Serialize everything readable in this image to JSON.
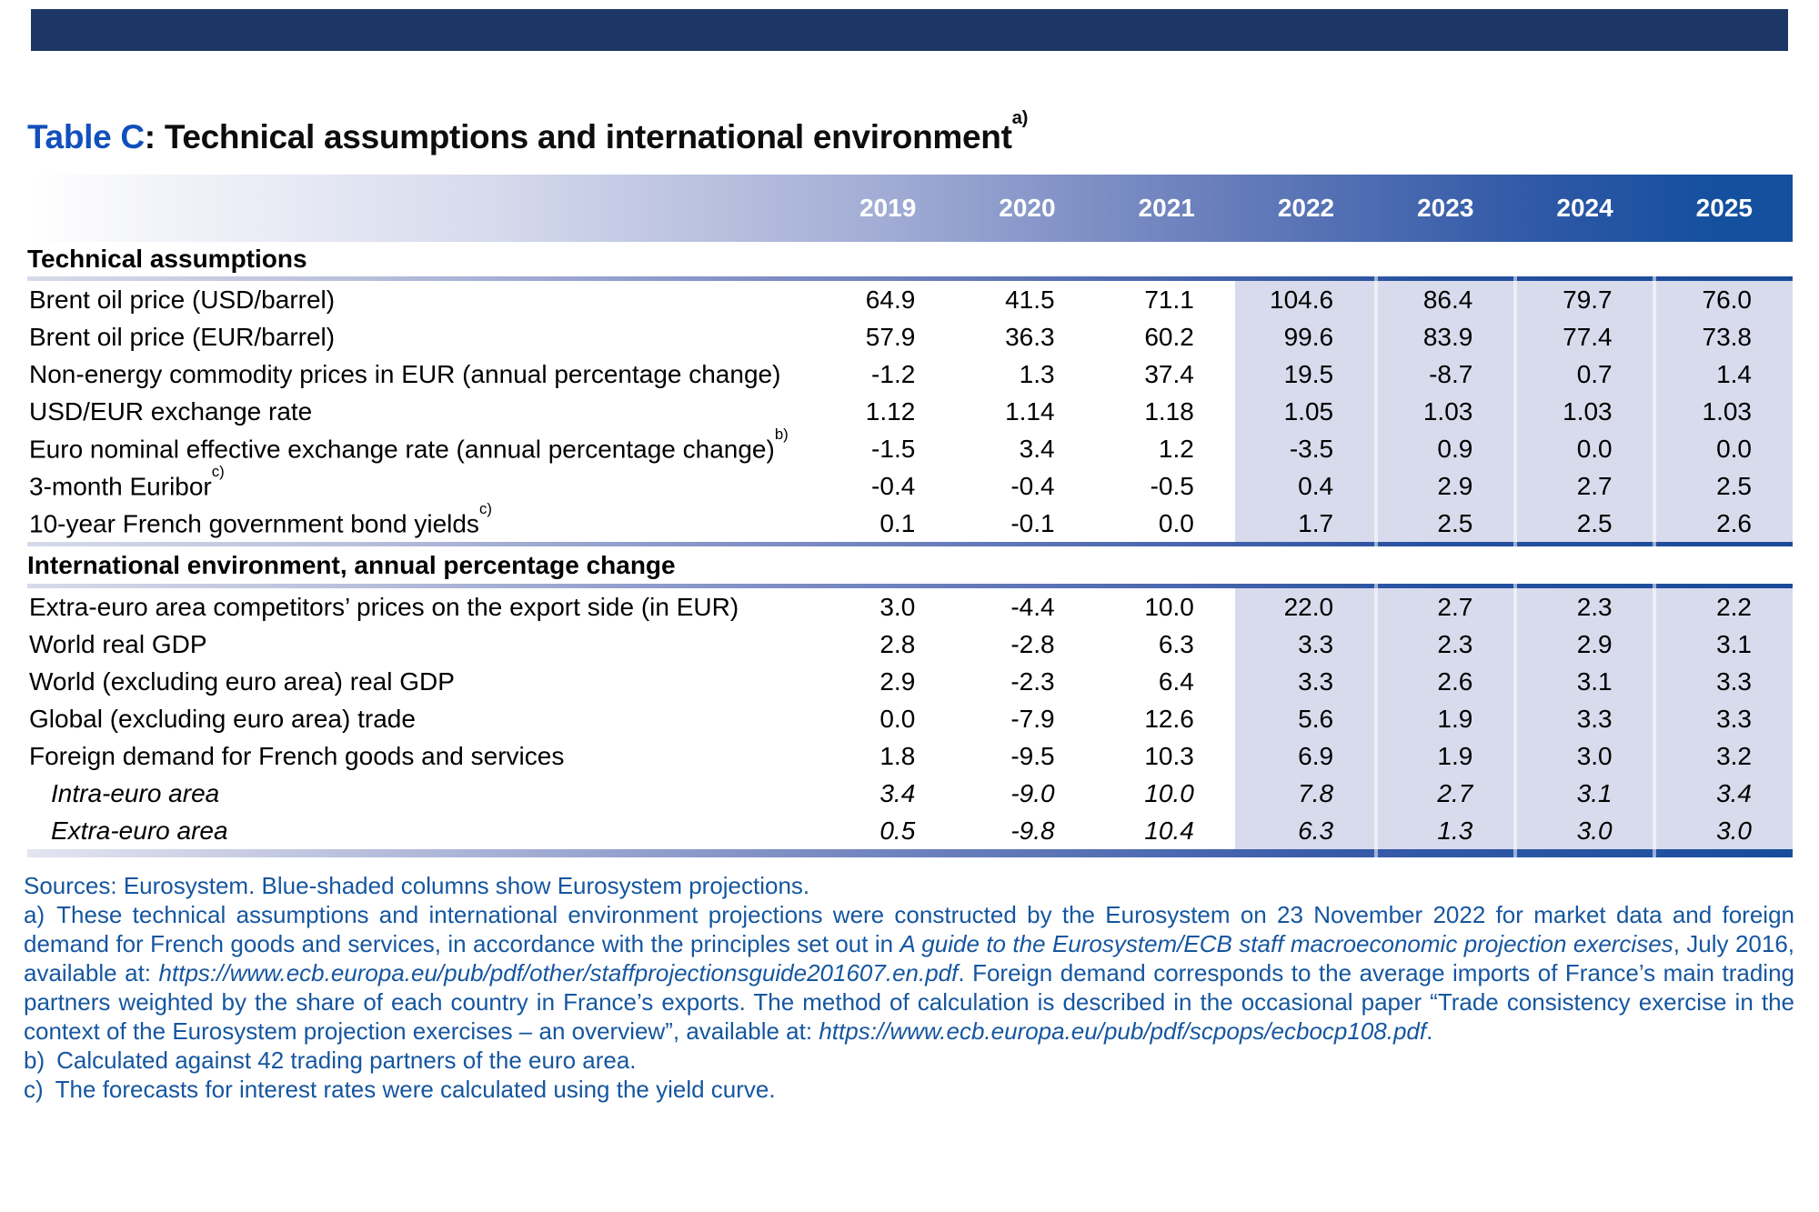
{
  "title": {
    "label": "Table C",
    "separator": ": ",
    "text": "Technical assumptions and international environment",
    "sup": "a)"
  },
  "table": {
    "years": [
      "2019",
      "2020",
      "2021",
      "2022",
      "2023",
      "2024",
      "2025"
    ],
    "projection_years": [
      "2022",
      "2023",
      "2024",
      "2025"
    ],
    "sections": [
      {
        "header": "Technical assumptions",
        "rows": [
          {
            "label": "Brent oil price (USD/barrel)",
            "sup": "",
            "italic": false,
            "values": [
              "64.9",
              "41.5",
              "71.1",
              "104.6",
              "86.4",
              "79.7",
              "76.0"
            ]
          },
          {
            "label": "Brent oil price (EUR/barrel)",
            "sup": "",
            "italic": false,
            "values": [
              "57.9",
              "36.3",
              "60.2",
              "99.6",
              "83.9",
              "77.4",
              "73.8"
            ]
          },
          {
            "label": "Non-energy commodity prices in EUR (annual percentage change)",
            "sup": "",
            "italic": false,
            "values": [
              "-1.2",
              "1.3",
              "37.4",
              "19.5",
              "-8.7",
              "0.7",
              "1.4"
            ]
          },
          {
            "label": "USD/EUR exchange rate",
            "sup": "",
            "italic": false,
            "values": [
              "1.12",
              "1.14",
              "1.18",
              "1.05",
              "1.03",
              "1.03",
              "1.03"
            ]
          },
          {
            "label": "Euro nominal effective exchange rate (annual percentage change)",
            "sup": "b)",
            "italic": false,
            "values": [
              "-1.5",
              "3.4",
              "1.2",
              "-3.5",
              "0.9",
              "0.0",
              "0.0"
            ]
          },
          {
            "label": "3-month Euribor",
            "sup": "c)",
            "italic": false,
            "values": [
              "-0.4",
              "-0.4",
              "-0.5",
              "0.4",
              "2.9",
              "2.7",
              "2.5"
            ]
          },
          {
            "label": "10-year French government bond yields",
            "sup": "c)",
            "italic": false,
            "values": [
              "0.1",
              "-0.1",
              "0.0",
              "1.7",
              "2.5",
              "2.5",
              "2.6"
            ]
          }
        ]
      },
      {
        "header": "International environment, annual percentage change",
        "rows": [
          {
            "label": "Extra-euro area competitors’ prices on the export side (in EUR)",
            "sup": "",
            "italic": false,
            "values": [
              "3.0",
              "-4.4",
              "10.0",
              "22.0",
              "2.7",
              "2.3",
              "2.2"
            ]
          },
          {
            "label": "World real GDP",
            "sup": "",
            "italic": false,
            "values": [
              "2.8",
              "-2.8",
              "6.3",
              "3.3",
              "2.3",
              "2.9",
              "3.1"
            ]
          },
          {
            "label": "World (excluding euro area) real GDP",
            "sup": "",
            "italic": false,
            "values": [
              "2.9",
              "-2.3",
              "6.4",
              "3.3",
              "2.6",
              "3.1",
              "3.3"
            ]
          },
          {
            "label": "Global (excluding euro area) trade",
            "sup": "",
            "italic": false,
            "values": [
              "0.0",
              "-7.9",
              "12.6",
              "5.6",
              "1.9",
              "3.3",
              "3.3"
            ]
          },
          {
            "label": "Foreign demand for French goods and services",
            "sup": "",
            "italic": false,
            "values": [
              "1.8",
              "-9.5",
              "10.3",
              "6.9",
              "1.9",
              "3.0",
              "3.2"
            ]
          },
          {
            "label": "Intra-euro area",
            "sup": "",
            "italic": true,
            "values": [
              "3.4",
              "-9.0",
              "10.0",
              "7.8",
              "2.7",
              "3.1",
              "3.4"
            ]
          },
          {
            "label": "Extra-euro area",
            "sup": "",
            "italic": true,
            "values": [
              "0.5",
              "-9.8",
              "10.4",
              "6.3",
              "1.3",
              "3.0",
              "3.0"
            ]
          }
        ]
      }
    ]
  },
  "footnotes": {
    "sources": "Sources: Eurosystem. Blue-shaded columns show Eurosystem projections.",
    "a_marker": "a)",
    "a_segments": [
      {
        "text": "These technical assumptions and international environment projections were constructed by the Eurosystem on 23 November 2022 for market data and foreign demand for French goods and services, in accordance with the principles set out in ",
        "italic": false
      },
      {
        "text": "A guide to the Eurosystem/ECB staff macroeconomic projection exercises",
        "italic": true
      },
      {
        "text": ", July 2016, available at: ",
        "italic": false
      },
      {
        "text": "https://www.ecb.europa.eu/pub/pdf/other/staffprojectionsguide201607.en.pdf",
        "italic": true
      },
      {
        "text": ". Foreign demand corresponds to the average imports of France’s main trading partners weighted by the share of each country in France’s exports. The method of calculation is described in the occasional paper “Trade consistency exercise in the context of the Eurosystem projection exercises – an overview”, available at: ",
        "italic": false
      },
      {
        "text": "https://www.ecb.europa.eu/pub/pdf/scpops/ecbocp108.pdf",
        "italic": true
      },
      {
        "text": ".",
        "italic": false
      }
    ],
    "b_marker": "b)",
    "b_text": "Calculated against 42 trading partners of the euro area.",
    "c_marker": "c)",
    "c_text": "The forecasts for interest rates were calculated using the yield curve."
  },
  "colors": {
    "top_bar_navy": "#1d3765",
    "header_band_dark_blue": "#14509e",
    "projection_shading": "#d8dbec",
    "title_blue": "#1150bc",
    "footnote_blue": "#15569f"
  }
}
